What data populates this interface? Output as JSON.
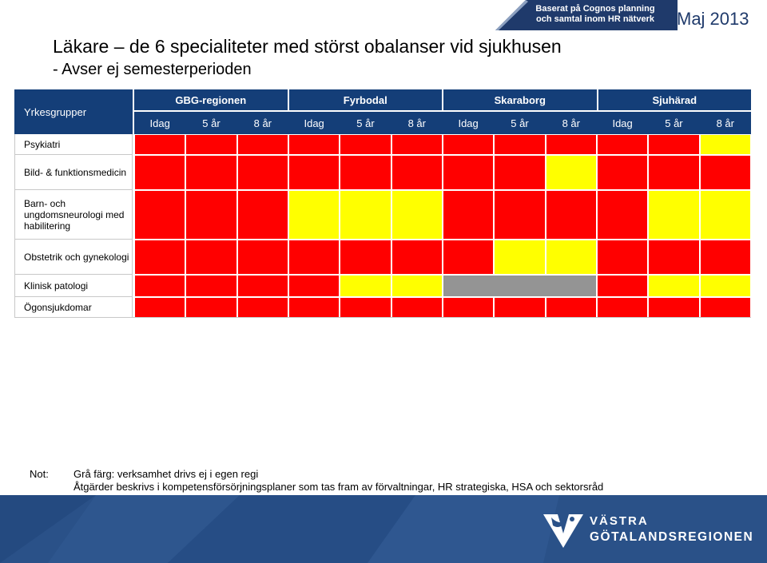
{
  "header": {
    "title": "Läkare – de 6 specialiteter med störst obalanser vid sjukhusen",
    "subtitle": "- Avser ej semesterperioden",
    "source_line1": "Baserat på Cognos planning",
    "source_line2": "och samtal inom HR nätverk",
    "date": "Maj 2013"
  },
  "colors": {
    "header_bg": "#143e78",
    "red": "#ff0000",
    "yellow": "#ffff00",
    "grey": "#949494",
    "footer_bg": "#2a5188"
  },
  "chart_data": {
    "type": "heatmap",
    "corner_label": "Yrkesgrupper",
    "regions": [
      "GBG-regionen",
      "Fyrbodal",
      "Skaraborg",
      "Sjuhärad"
    ],
    "periods": [
      "Idag",
      "5 år",
      "8 år"
    ],
    "rows": [
      "Psykiatri",
      "Bild- & funktionsmedicin",
      "Barn- och ungdomsneurologi med habilitering",
      "Obstetrik och gynekologi",
      "Klinisk patologi",
      "Ögonsjukdomar"
    ],
    "legend": {
      "R": "red",
      "Y": "yellow",
      "G": "grey"
    },
    "values": [
      [
        "R",
        "R",
        "R",
        "R",
        "R",
        "R",
        "R",
        "R",
        "R",
        "R",
        "R",
        "Y"
      ],
      [
        "R",
        "R",
        "R",
        "R",
        "R",
        "R",
        "R",
        "R",
        "Y",
        "R",
        "R",
        "R"
      ],
      [
        "R",
        "R",
        "R",
        "Y",
        "Y",
        "Y",
        "R",
        "R",
        "R",
        "R",
        "Y",
        "Y"
      ],
      [
        "R",
        "R",
        "R",
        "R",
        "R",
        "R",
        "R",
        "Y",
        "Y",
        "R",
        "R",
        "R"
      ],
      [
        "R",
        "R",
        "R",
        "R",
        "Y",
        "Y",
        "G",
        "G",
        "G",
        "R",
        "Y",
        "Y"
      ],
      [
        "R",
        "R",
        "R",
        "R",
        "R",
        "R",
        "R",
        "R",
        "R",
        "R",
        "R",
        "R"
      ]
    ]
  },
  "note": {
    "label": "Not:",
    "line1": "Grå färg: verksamhet drivs ej i egen regi",
    "line2": "Åtgärder beskrivs i kompetensförsörjningsplaner som tas fram av förvaltningar, HR strategiska, HSA och sektorsråd"
  },
  "footer": {
    "logo_line1": "VÄSTRA",
    "logo_line2": "GÖTALANDSREGIONEN"
  }
}
